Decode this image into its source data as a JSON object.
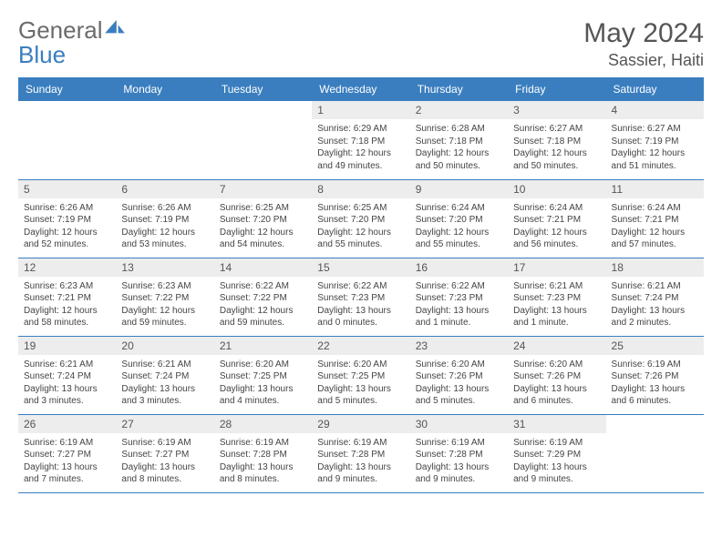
{
  "brand": {
    "word1": "General",
    "word2": "Blue"
  },
  "title": "May 2024",
  "location": "Sassier, Haiti",
  "colors": {
    "accent": "#3a7ebf",
    "header_text": "#ffffff",
    "daynum_bg": "#ededed",
    "text": "#444"
  },
  "weekdays": [
    "Sunday",
    "Monday",
    "Tuesday",
    "Wednesday",
    "Thursday",
    "Friday",
    "Saturday"
  ],
  "first_weekday_index": 3,
  "days": [
    {
      "n": "1",
      "sunrise": "6:29 AM",
      "sunset": "7:18 PM",
      "daylight": "12 hours and 49 minutes."
    },
    {
      "n": "2",
      "sunrise": "6:28 AM",
      "sunset": "7:18 PM",
      "daylight": "12 hours and 50 minutes."
    },
    {
      "n": "3",
      "sunrise": "6:27 AM",
      "sunset": "7:18 PM",
      "daylight": "12 hours and 50 minutes."
    },
    {
      "n": "4",
      "sunrise": "6:27 AM",
      "sunset": "7:19 PM",
      "daylight": "12 hours and 51 minutes."
    },
    {
      "n": "5",
      "sunrise": "6:26 AM",
      "sunset": "7:19 PM",
      "daylight": "12 hours and 52 minutes."
    },
    {
      "n": "6",
      "sunrise": "6:26 AM",
      "sunset": "7:19 PM",
      "daylight": "12 hours and 53 minutes."
    },
    {
      "n": "7",
      "sunrise": "6:25 AM",
      "sunset": "7:20 PM",
      "daylight": "12 hours and 54 minutes."
    },
    {
      "n": "8",
      "sunrise": "6:25 AM",
      "sunset": "7:20 PM",
      "daylight": "12 hours and 55 minutes."
    },
    {
      "n": "9",
      "sunrise": "6:24 AM",
      "sunset": "7:20 PM",
      "daylight": "12 hours and 55 minutes."
    },
    {
      "n": "10",
      "sunrise": "6:24 AM",
      "sunset": "7:21 PM",
      "daylight": "12 hours and 56 minutes."
    },
    {
      "n": "11",
      "sunrise": "6:24 AM",
      "sunset": "7:21 PM",
      "daylight": "12 hours and 57 minutes."
    },
    {
      "n": "12",
      "sunrise": "6:23 AM",
      "sunset": "7:21 PM",
      "daylight": "12 hours and 58 minutes."
    },
    {
      "n": "13",
      "sunrise": "6:23 AM",
      "sunset": "7:22 PM",
      "daylight": "12 hours and 59 minutes."
    },
    {
      "n": "14",
      "sunrise": "6:22 AM",
      "sunset": "7:22 PM",
      "daylight": "12 hours and 59 minutes."
    },
    {
      "n": "15",
      "sunrise": "6:22 AM",
      "sunset": "7:23 PM",
      "daylight": "13 hours and 0 minutes."
    },
    {
      "n": "16",
      "sunrise": "6:22 AM",
      "sunset": "7:23 PM",
      "daylight": "13 hours and 1 minute."
    },
    {
      "n": "17",
      "sunrise": "6:21 AM",
      "sunset": "7:23 PM",
      "daylight": "13 hours and 1 minute."
    },
    {
      "n": "18",
      "sunrise": "6:21 AM",
      "sunset": "7:24 PM",
      "daylight": "13 hours and 2 minutes."
    },
    {
      "n": "19",
      "sunrise": "6:21 AM",
      "sunset": "7:24 PM",
      "daylight": "13 hours and 3 minutes."
    },
    {
      "n": "20",
      "sunrise": "6:21 AM",
      "sunset": "7:24 PM",
      "daylight": "13 hours and 3 minutes."
    },
    {
      "n": "21",
      "sunrise": "6:20 AM",
      "sunset": "7:25 PM",
      "daylight": "13 hours and 4 minutes."
    },
    {
      "n": "22",
      "sunrise": "6:20 AM",
      "sunset": "7:25 PM",
      "daylight": "13 hours and 5 minutes."
    },
    {
      "n": "23",
      "sunrise": "6:20 AM",
      "sunset": "7:26 PM",
      "daylight": "13 hours and 5 minutes."
    },
    {
      "n": "24",
      "sunrise": "6:20 AM",
      "sunset": "7:26 PM",
      "daylight": "13 hours and 6 minutes."
    },
    {
      "n": "25",
      "sunrise": "6:19 AM",
      "sunset": "7:26 PM",
      "daylight": "13 hours and 6 minutes."
    },
    {
      "n": "26",
      "sunrise": "6:19 AM",
      "sunset": "7:27 PM",
      "daylight": "13 hours and 7 minutes."
    },
    {
      "n": "27",
      "sunrise": "6:19 AM",
      "sunset": "7:27 PM",
      "daylight": "13 hours and 8 minutes."
    },
    {
      "n": "28",
      "sunrise": "6:19 AM",
      "sunset": "7:28 PM",
      "daylight": "13 hours and 8 minutes."
    },
    {
      "n": "29",
      "sunrise": "6:19 AM",
      "sunset": "7:28 PM",
      "daylight": "13 hours and 9 minutes."
    },
    {
      "n": "30",
      "sunrise": "6:19 AM",
      "sunset": "7:28 PM",
      "daylight": "13 hours and 9 minutes."
    },
    {
      "n": "31",
      "sunrise": "6:19 AM",
      "sunset": "7:29 PM",
      "daylight": "13 hours and 9 minutes."
    }
  ],
  "labels": {
    "sunrise": "Sunrise:",
    "sunset": "Sunset:",
    "daylight": "Daylight:"
  }
}
